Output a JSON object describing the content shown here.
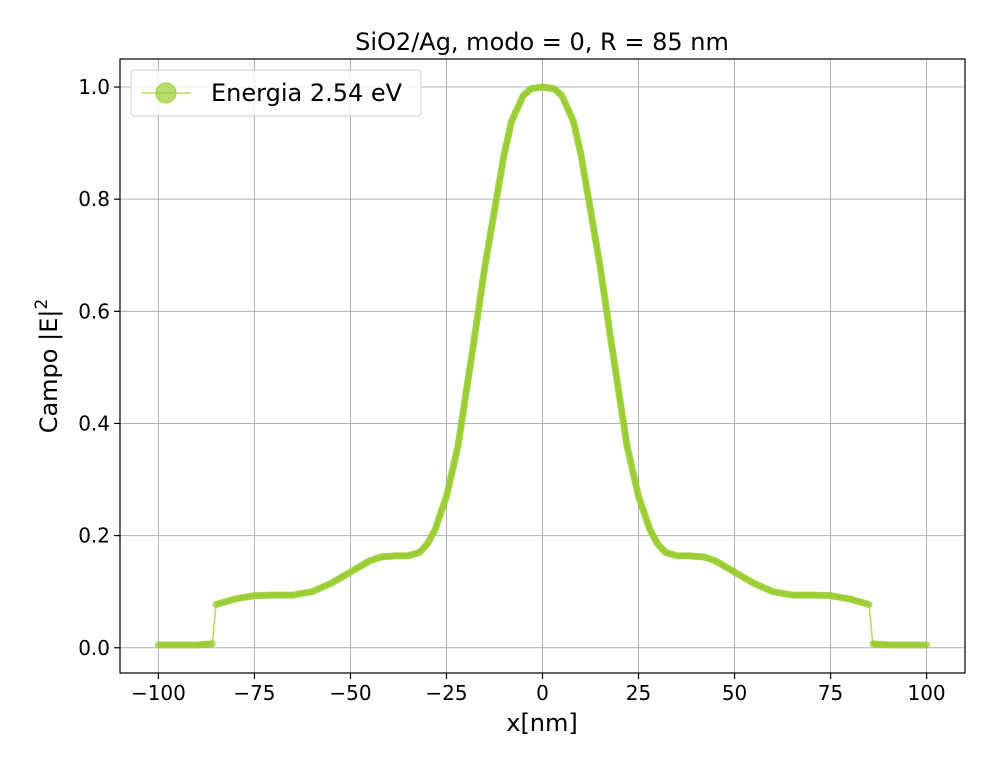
{
  "chart_data": {
    "type": "line",
    "title": "SiO2/Ag, modo = 0, R = 85 nm",
    "xlabel": "x[nm]",
    "ylabel_main": "Campo |E|",
    "ylabel_sup": "2",
    "xlim": [
      -110,
      110
    ],
    "ylim": [
      -0.045,
      1.05
    ],
    "xticks": [
      -100,
      -75,
      -50,
      -25,
      0,
      25,
      50,
      75,
      100
    ],
    "xtick_labels": [
      "−100",
      "−75",
      "−50",
      "−25",
      "0",
      "25",
      "50",
      "75",
      "100"
    ],
    "yticks": [
      0.0,
      0.2,
      0.4,
      0.6,
      0.8,
      1.0
    ],
    "ytick_labels": [
      "0.0",
      "0.2",
      "0.4",
      "0.6",
      "0.8",
      "1.0"
    ],
    "grid": true,
    "legend_position": "top-left",
    "series": [
      {
        "name": "Energia 2.54 eV",
        "color": "#9acd32",
        "marker": "circle",
        "x": [
          -100,
          -95,
          -90,
          -86,
          -85,
          -82,
          -80,
          -75,
          -70,
          -65,
          -60,
          -55,
          -50,
          -45,
          -42,
          -38,
          -35,
          -32,
          -30,
          -28,
          -25,
          -22,
          -20,
          -18,
          -15,
          -12,
          -10,
          -8,
          -5,
          -3,
          0,
          3,
          5,
          8,
          10,
          12,
          15,
          18,
          20,
          22,
          25,
          28,
          30,
          32,
          35,
          38,
          42,
          45,
          50,
          55,
          60,
          65,
          70,
          75,
          80,
          82,
          85,
          86,
          90,
          95,
          100
        ],
        "y": [
          0.005,
          0.005,
          0.005,
          0.007,
          0.077,
          0.083,
          0.087,
          0.093,
          0.094,
          0.094,
          0.1,
          0.115,
          0.135,
          0.155,
          0.162,
          0.164,
          0.164,
          0.17,
          0.185,
          0.21,
          0.27,
          0.36,
          0.45,
          0.54,
          0.68,
          0.8,
          0.88,
          0.94,
          0.985,
          0.997,
          1.0,
          0.997,
          0.985,
          0.94,
          0.88,
          0.8,
          0.68,
          0.54,
          0.45,
          0.36,
          0.27,
          0.21,
          0.185,
          0.17,
          0.164,
          0.164,
          0.162,
          0.155,
          0.135,
          0.115,
          0.1,
          0.094,
          0.094,
          0.093,
          0.087,
          0.083,
          0.077,
          0.007,
          0.005,
          0.005,
          0.005
        ]
      }
    ]
  }
}
